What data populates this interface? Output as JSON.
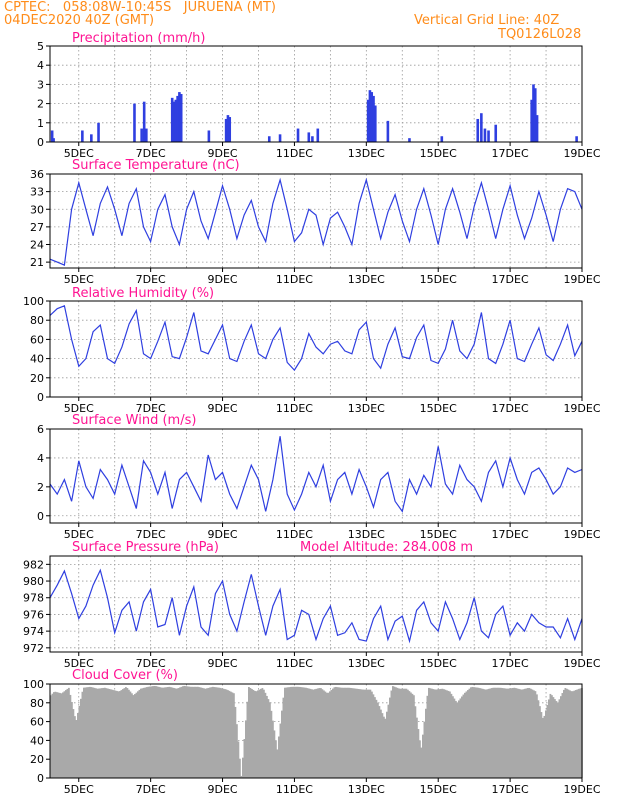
{
  "header": {
    "line1_left": "CPTEC:   058:08W-10:45S   JURUENA (MT)",
    "line2_left": "04DEC2020 40Z (GMT)",
    "line2_right": "Vertical Grid Line: 40Z",
    "line3_right": "TQ0126L028"
  },
  "x_axis": {
    "tick_labels": [
      "5DEC",
      "7DEC",
      "9DEC",
      "11DEC",
      "13DEC",
      "15DEC",
      "17DEC",
      "19DEC"
    ],
    "tick_days": [
      5,
      7,
      9,
      11,
      13,
      15,
      17,
      19
    ],
    "range_days": [
      4.2,
      19.0
    ]
  },
  "colors": {
    "header": "#ff8c1a",
    "title": "#ff1493",
    "line": "#2f3fe0",
    "bar": "#2f3fe0",
    "cloud": "#a9a9a9",
    "grid": "#9a9a9a"
  },
  "chart_data": [
    {
      "type": "bar",
      "title": "Precipitation  (mm/h)",
      "ylim": [
        0,
        5
      ],
      "yticks": [
        0,
        1,
        2,
        3,
        4,
        5
      ],
      "x": [
        4.26,
        4.3,
        5.1,
        5.35,
        5.55,
        6.55,
        6.75,
        6.82,
        6.88,
        7.6,
        7.65,
        7.7,
        7.75,
        7.8,
        7.85,
        8.62,
        9.1,
        9.15,
        9.2,
        10.3,
        10.6,
        11.1,
        11.4,
        11.5,
        11.65,
        13.05,
        13.1,
        13.15,
        13.2,
        13.25,
        13.6,
        14.2,
        15.1,
        16.1,
        16.2,
        16.3,
        16.4,
        16.6,
        17.6,
        17.65,
        17.7,
        17.75,
        18.85
      ],
      "values": [
        0.6,
        0.2,
        0.6,
        0.4,
        1.0,
        2.0,
        0.7,
        2.1,
        0.7,
        2.3,
        2.1,
        2.2,
        2.4,
        2.6,
        2.5,
        0.6,
        1.2,
        1.4,
        1.3,
        0.3,
        0.4,
        0.7,
        0.5,
        0.3,
        0.7,
        2.2,
        2.7,
        2.6,
        2.4,
        1.9,
        1.1,
        0.2,
        0.3,
        1.2,
        1.5,
        0.7,
        0.6,
        0.9,
        2.2,
        3.0,
        2.8,
        1.4,
        0.3
      ]
    },
    {
      "type": "line",
      "title": "Surface Temperature (nC)",
      "ylim": [
        20,
        36
      ],
      "yticks": [
        21,
        24,
        27,
        30,
        33,
        36
      ],
      "x": [
        4.2,
        4.4,
        4.6,
        4.8,
        5.0,
        5.2,
        5.4,
        5.6,
        5.8,
        6.0,
        6.2,
        6.4,
        6.6,
        6.8,
        7.0,
        7.2,
        7.4,
        7.6,
        7.8,
        8.0,
        8.2,
        8.4,
        8.6,
        8.8,
        9.0,
        9.2,
        9.4,
        9.6,
        9.8,
        10.0,
        10.2,
        10.4,
        10.6,
        10.8,
        11.0,
        11.2,
        11.4,
        11.6,
        11.8,
        12.0,
        12.2,
        12.4,
        12.6,
        12.8,
        13.0,
        13.2,
        13.4,
        13.6,
        13.8,
        14.0,
        14.2,
        14.4,
        14.6,
        14.8,
        15.0,
        15.2,
        15.4,
        15.6,
        15.8,
        16.0,
        16.2,
        16.4,
        16.6,
        16.8,
        17.0,
        17.2,
        17.4,
        17.6,
        17.8,
        18.0,
        18.2,
        18.4,
        18.6,
        18.8,
        19.0
      ],
      "values": [
        21.5,
        21.0,
        20.5,
        30.0,
        34.5,
        30.0,
        25.5,
        31.0,
        33.8,
        30.0,
        25.5,
        31.0,
        33.5,
        27.0,
        24.5,
        30.0,
        32.5,
        27.0,
        24.0,
        30.0,
        33.0,
        28.0,
        25.0,
        29.5,
        34.0,
        30.0,
        25.0,
        29.0,
        31.5,
        27.0,
        24.5,
        31.0,
        35.0,
        30.0,
        24.5,
        26.0,
        30.0,
        29.0,
        24.0,
        28.5,
        29.5,
        27.0,
        24.0,
        31.0,
        35.0,
        30.0,
        25.0,
        29.5,
        32.5,
        28.0,
        24.5,
        30.0,
        33.5,
        29.0,
        24.0,
        30.0,
        33.5,
        29.5,
        25.0,
        30.5,
        34.5,
        30.0,
        25.0,
        30.0,
        34.0,
        29.0,
        25.0,
        28.5,
        33.0,
        29.0,
        24.5,
        30.0,
        33.5,
        33.0,
        30.0
      ]
    },
    {
      "type": "line",
      "title": "Relative Humidity  (%)",
      "ylim": [
        0,
        100
      ],
      "yticks": [
        0,
        20,
        40,
        60,
        80,
        100
      ],
      "x": [
        4.2,
        4.4,
        4.6,
        4.8,
        5.0,
        5.2,
        5.4,
        5.6,
        5.8,
        6.0,
        6.2,
        6.4,
        6.6,
        6.8,
        7.0,
        7.2,
        7.4,
        7.6,
        7.8,
        8.0,
        8.2,
        8.4,
        8.6,
        8.8,
        9.0,
        9.2,
        9.4,
        9.6,
        9.8,
        10.0,
        10.2,
        10.4,
        10.6,
        10.8,
        11.0,
        11.2,
        11.4,
        11.6,
        11.8,
        12.0,
        12.2,
        12.4,
        12.6,
        12.8,
        13.0,
        13.2,
        13.4,
        13.6,
        13.8,
        14.0,
        14.2,
        14.4,
        14.6,
        14.8,
        15.0,
        15.2,
        15.4,
        15.6,
        15.8,
        16.0,
        16.2,
        16.4,
        16.6,
        16.8,
        17.0,
        17.2,
        17.4,
        17.6,
        17.8,
        18.0,
        18.2,
        18.4,
        18.6,
        18.8,
        19.0
      ],
      "values": [
        85,
        92,
        95,
        60,
        32,
        40,
        68,
        75,
        40,
        35,
        52,
        76,
        90,
        45,
        40,
        58,
        78,
        42,
        40,
        62,
        88,
        48,
        45,
        60,
        75,
        40,
        37,
        58,
        75,
        45,
        40,
        60,
        72,
        36,
        28,
        40,
        66,
        52,
        45,
        55,
        58,
        48,
        45,
        70,
        78,
        40,
        30,
        55,
        72,
        42,
        40,
        62,
        75,
        38,
        35,
        50,
        80,
        48,
        40,
        55,
        88,
        40,
        35,
        55,
        80,
        40,
        37,
        55,
        72,
        44,
        38,
        55,
        75,
        43,
        58
      ]
    },
    {
      "type": "line",
      "title": "Surface Wind  (m/s)",
      "ylim": [
        -0.5,
        6
      ],
      "yticks": [
        0,
        2,
        4,
        6
      ],
      "x": [
        4.2,
        4.4,
        4.6,
        4.8,
        5.0,
        5.2,
        5.4,
        5.6,
        5.8,
        6.0,
        6.2,
        6.4,
        6.6,
        6.8,
        7.0,
        7.2,
        7.4,
        7.6,
        7.8,
        8.0,
        8.2,
        8.4,
        8.6,
        8.8,
        9.0,
        9.2,
        9.4,
        9.6,
        9.8,
        10.0,
        10.2,
        10.4,
        10.6,
        10.8,
        11.0,
        11.2,
        11.4,
        11.6,
        11.8,
        12.0,
        12.2,
        12.4,
        12.6,
        12.8,
        13.0,
        13.2,
        13.4,
        13.6,
        13.8,
        14.0,
        14.2,
        14.4,
        14.6,
        14.8,
        15.0,
        15.2,
        15.4,
        15.6,
        15.8,
        16.0,
        16.2,
        16.4,
        16.6,
        16.8,
        17.0,
        17.2,
        17.4,
        17.6,
        17.8,
        18.0,
        18.2,
        18.4,
        18.6,
        18.8,
        19.0
      ],
      "values": [
        2.2,
        1.5,
        2.5,
        1.0,
        3.8,
        2.0,
        1.2,
        3.2,
        2.5,
        1.5,
        3.5,
        2.0,
        0.5,
        3.8,
        3.0,
        1.5,
        3.0,
        0.5,
        2.5,
        3.0,
        2.0,
        1.0,
        4.2,
        2.5,
        3.0,
        1.5,
        0.5,
        2.0,
        3.5,
        2.5,
        0.3,
        2.5,
        5.5,
        1.5,
        0.4,
        1.5,
        3.0,
        2.0,
        3.5,
        1.0,
        2.5,
        3.0,
        1.5,
        3.2,
        2.0,
        0.6,
        2.5,
        3.0,
        1.0,
        0.3,
        2.5,
        1.5,
        2.8,
        2.0,
        4.8,
        2.2,
        1.5,
        3.5,
        2.5,
        2.0,
        1.0,
        3.0,
        3.8,
        2.0,
        4.0,
        2.5,
        1.5,
        3.0,
        3.3,
        2.5,
        1.5,
        2.0,
        3.3,
        3.0,
        3.2
      ]
    },
    {
      "type": "line",
      "title": "Surface Pressure  (hPa)",
      "annotation": "Model Altitude: 284.008  m",
      "ylim": [
        971.5,
        983
      ],
      "yticks": [
        972,
        974,
        976,
        978,
        980,
        982
      ],
      "x": [
        4.2,
        4.4,
        4.6,
        4.8,
        5.0,
        5.2,
        5.4,
        5.6,
        5.8,
        6.0,
        6.2,
        6.4,
        6.6,
        6.8,
        7.0,
        7.2,
        7.4,
        7.6,
        7.8,
        8.0,
        8.2,
        8.4,
        8.6,
        8.8,
        9.0,
        9.2,
        9.4,
        9.6,
        9.8,
        10.0,
        10.2,
        10.4,
        10.6,
        10.8,
        11.0,
        11.2,
        11.4,
        11.6,
        11.8,
        12.0,
        12.2,
        12.4,
        12.6,
        12.8,
        13.0,
        13.2,
        13.4,
        13.6,
        13.8,
        14.0,
        14.2,
        14.4,
        14.6,
        14.8,
        15.0,
        15.2,
        15.4,
        15.6,
        15.8,
        16.0,
        16.2,
        16.4,
        16.6,
        16.8,
        17.0,
        17.2,
        17.4,
        17.6,
        17.8,
        18.0,
        18.2,
        18.4,
        18.6,
        18.8,
        19.0
      ],
      "values": [
        978.0,
        979.5,
        981.2,
        978.5,
        975.5,
        977.0,
        979.5,
        981.3,
        978.0,
        973.8,
        976.5,
        977.5,
        974.0,
        977.5,
        979.0,
        974.5,
        974.8,
        978.0,
        973.5,
        977.0,
        979.3,
        974.5,
        973.5,
        978.5,
        980.0,
        976.0,
        974.0,
        977.5,
        980.8,
        977.0,
        973.5,
        977.0,
        979.0,
        973.0,
        973.5,
        976.5,
        976.0,
        973.0,
        975.5,
        977.0,
        973.5,
        973.8,
        975.0,
        973.0,
        972.8,
        975.5,
        977.0,
        973.0,
        975.2,
        975.8,
        972.8,
        976.5,
        977.5,
        975.0,
        974.0,
        977.5,
        975.5,
        973.0,
        975.0,
        978.0,
        974.0,
        973.2,
        976.0,
        977.0,
        973.5,
        975.0,
        974.0,
        976.0,
        975.0,
        974.5,
        974.5,
        973.2,
        975.5,
        973.0,
        975.5
      ]
    },
    {
      "type": "area",
      "title": "Cloud Cover  (%)",
      "ylim": [
        0,
        100
      ],
      "yticks": [
        0,
        20,
        40,
        60,
        80,
        100
      ],
      "x": [
        4.2,
        4.3,
        4.5,
        4.7,
        4.9,
        5.1,
        5.3,
        5.5,
        5.7,
        5.9,
        6.1,
        6.3,
        6.5,
        6.7,
        6.9,
        7.1,
        7.3,
        7.5,
        7.7,
        7.9,
        8.1,
        8.3,
        8.5,
        8.7,
        8.9,
        9.1,
        9.3,
        9.5,
        9.7,
        9.9,
        10.1,
        10.3,
        10.5,
        10.7,
        10.9,
        11.1,
        11.3,
        11.5,
        11.7,
        11.9,
        12.1,
        12.3,
        12.5,
        12.7,
        12.9,
        13.1,
        13.3,
        13.5,
        13.7,
        13.9,
        14.1,
        14.3,
        14.5,
        14.7,
        14.9,
        15.1,
        15.3,
        15.5,
        15.7,
        15.9,
        16.1,
        16.3,
        16.5,
        16.7,
        16.9,
        17.1,
        17.3,
        17.5,
        17.7,
        17.9,
        18.1,
        18.3,
        18.5,
        18.7,
        18.9,
        19.0
      ],
      "values": [
        88,
        92,
        90,
        96,
        60,
        96,
        97,
        95,
        96,
        94,
        92,
        97,
        88,
        95,
        97,
        98,
        96,
        97,
        95,
        98,
        97,
        97,
        95,
        97,
        96,
        94,
        90,
        2,
        97,
        92,
        96,
        80,
        30,
        96,
        97,
        97,
        96,
        94,
        96,
        90,
        97,
        96,
        96,
        95,
        94,
        94,
        80,
        62,
        98,
        95,
        95,
        88,
        30,
        96,
        94,
        95,
        92,
        80,
        90,
        97,
        96,
        94,
        96,
        96,
        95,
        96,
        94,
        96,
        92,
        62,
        90,
        80,
        96,
        92,
        95,
        96
      ]
    }
  ]
}
